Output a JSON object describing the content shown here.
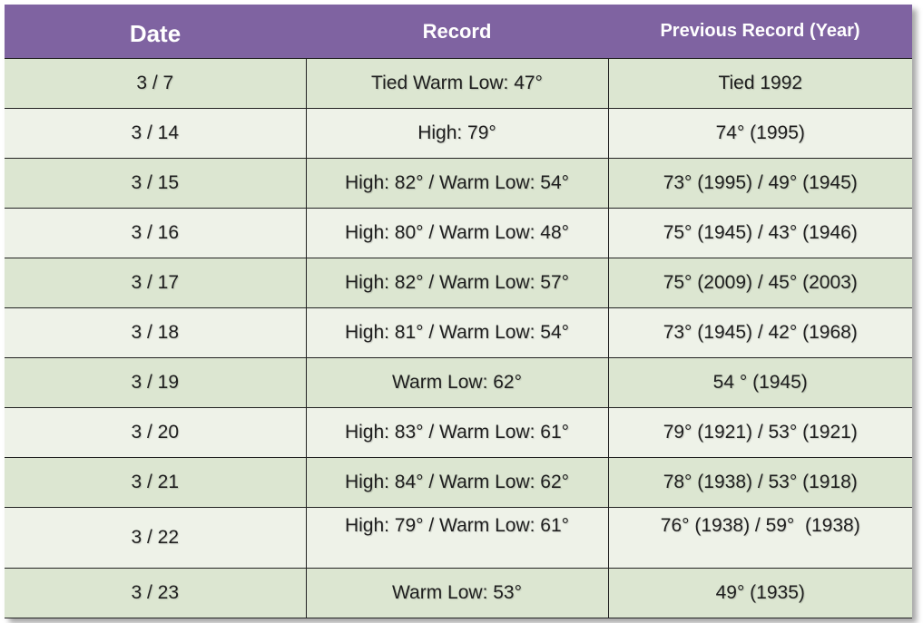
{
  "table": {
    "header": [
      "Date",
      "Record",
      "Previous Record (Year)"
    ],
    "rows": [
      [
        "3 / 7",
        "Tied Warm Low: 47°",
        "Tied 1992"
      ],
      [
        "3 / 14",
        "High: 79°",
        "74° (1995)"
      ],
      [
        "3 / 15",
        "High: 82° / Warm Low: 54°",
        "73° (1995) / 49° (1945)"
      ],
      [
        "3 / 16",
        "High: 80° / Warm Low: 48°",
        "75° (1945) / 43° (1946)"
      ],
      [
        "3 / 17",
        "High: 82° / Warm Low: 57°",
        "75° (2009) / 45° (2003)"
      ],
      [
        "3 / 18",
        "High: 81° / Warm Low: 54°",
        "73° (1945) / 42° (1968)"
      ],
      [
        "3 / 19",
        "Warm Low: 62°",
        "54 ° (1945)"
      ],
      [
        "3 / 20",
        "High: 83° / Warm Low: 61°",
        "79° (1921) / 53° (1921)"
      ],
      [
        "3 / 21",
        "High: 84° / Warm Low: 62°",
        "78° (1938) / 53° (1918)"
      ],
      [
        "3 / 22",
        "High: 79° / Warm Low: 61°",
        "76° (1938) / 59°  (1938)"
      ],
      [
        "3 / 23",
        "Warm Low: 53°",
        "49° (1935)"
      ]
    ]
  }
}
